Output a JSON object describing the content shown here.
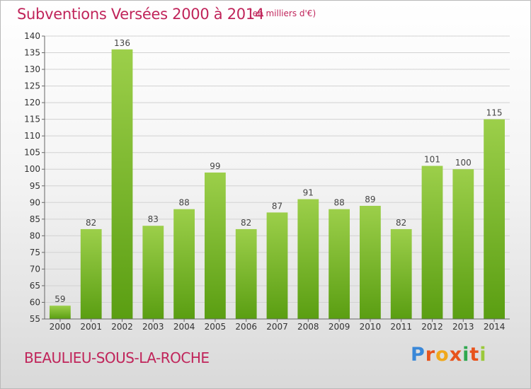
{
  "chart_data": {
    "type": "bar",
    "title": "Subventions Versées 2000 à 2014",
    "subtitle": "(en milliers d'€)",
    "categories": [
      "2000",
      "2001",
      "2002",
      "2003",
      "2004",
      "2005",
      "2006",
      "2007",
      "2008",
      "2009",
      "2010",
      "2011",
      "2012",
      "2013",
      "2014"
    ],
    "values": [
      59,
      82,
      136,
      83,
      88,
      99,
      82,
      87,
      91,
      88,
      89,
      82,
      101,
      100,
      115
    ],
    "ylim": [
      55,
      140
    ],
    "yticks": [
      55,
      60,
      65,
      70,
      75,
      80,
      85,
      90,
      95,
      100,
      105,
      110,
      115,
      120,
      125,
      130,
      135,
      140
    ],
    "grid": true,
    "bar_color_top": "#9ccf4a",
    "bar_color_bottom": "#5a9e12"
  },
  "footer": {
    "city": "BEAULIEU-SOUS-LA-ROCHE",
    "logo_letters": [
      "P",
      "r",
      "o",
      "x",
      "i",
      "t",
      "i"
    ]
  }
}
